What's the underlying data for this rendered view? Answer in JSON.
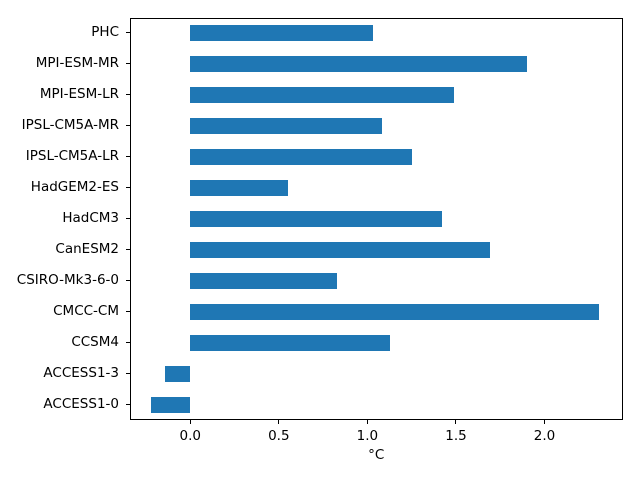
{
  "chart_data": {
    "type": "bar",
    "orientation": "horizontal",
    "title": "",
    "xlabel": "°C",
    "ylabel": "",
    "category_order": "top-to-bottom",
    "categories": [
      "PHC",
      "MPI-ESM-MR",
      "MPI-ESM-LR",
      "IPSL-CM5A-MR",
      "IPSL-CM5A-LR",
      "HadGEM2-ES",
      "HadCM3",
      "CanESM2",
      "CSIRO-Mk3-6-0",
      "CMCC-CM",
      "CCSM4",
      "ACCESS1-3",
      "ACCESS1-0"
    ],
    "values": [
      1.03,
      1.9,
      1.49,
      1.08,
      1.25,
      0.55,
      1.42,
      1.69,
      0.83,
      2.31,
      1.13,
      -0.14,
      -0.22
    ],
    "xtick_labels": [
      "0.0",
      "0.5",
      "1.0",
      "1.5",
      "2.0"
    ],
    "xtick_values": [
      0.0,
      0.5,
      1.0,
      1.5,
      2.0
    ],
    "xlim": [
      -0.34,
      2.44
    ],
    "bar_color": "#1f77b4",
    "grid": false,
    "legend": null
  }
}
